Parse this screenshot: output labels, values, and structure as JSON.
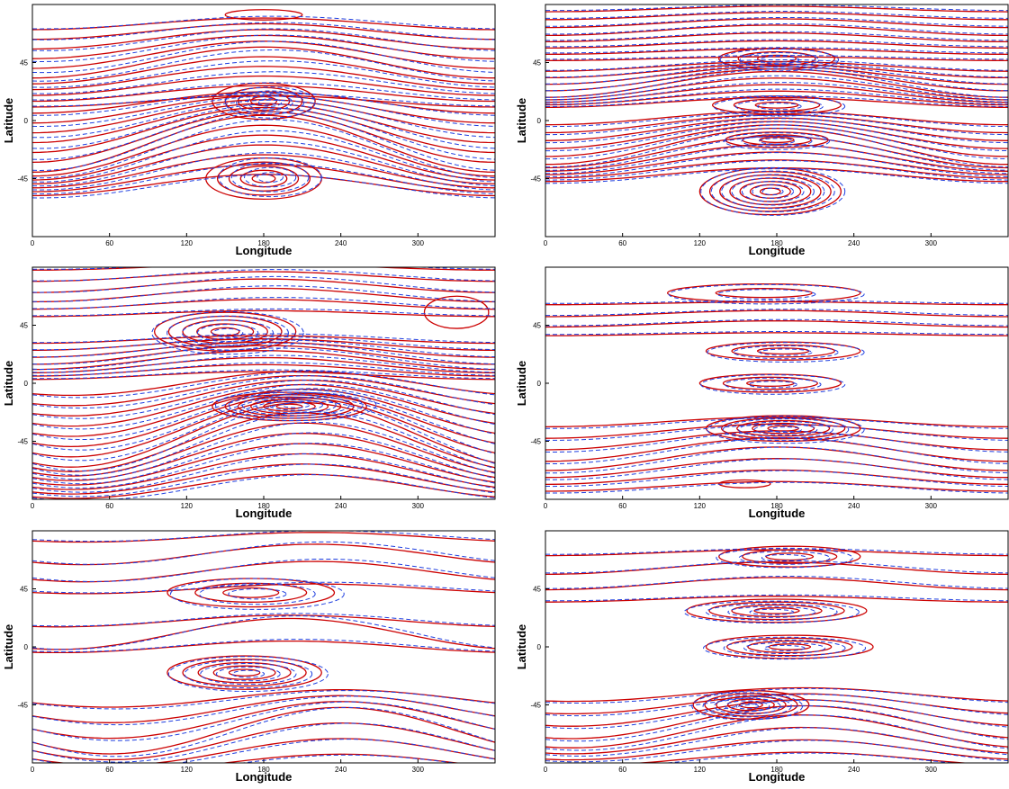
{
  "colors": {
    "solid": "#cc0000",
    "dashed": "#1f3fe0",
    "frame": "#000000",
    "background": "#ffffff"
  },
  "figure": {
    "rows": 3,
    "cols": 2
  },
  "chart_data": [
    {
      "panel": "row1-left",
      "type": "contour",
      "xlabel": "Longitude",
      "ylabel": "Latitude",
      "xlim": [
        0,
        360
      ],
      "ylim": [
        -90,
        90
      ],
      "xticks": [
        "0",
        "60",
        "120",
        "180",
        "240",
        "300"
      ],
      "yticks": [
        "45",
        "0",
        "-45"
      ],
      "series": [
        {
          "style": "solid",
          "bands": [
            {
              "lat": 45,
              "spread": 30,
              "amp": 12,
              "count": 11,
              "phase": 0
            },
            {
              "lat": -18,
              "spread": 32,
              "amp": 22,
              "count": 13,
              "phase": 0
            }
          ],
          "closed": [
            {
              "lon": 180,
              "lat": 15,
              "w": 80,
              "h": 28,
              "count": 4
            },
            {
              "lon": 180,
              "lat": -45,
              "w": 90,
              "h": 32,
              "count": 5
            },
            {
              "lon": 180,
              "lat": 82,
              "w": 60,
              "h": 8,
              "count": 1
            }
          ]
        },
        {
          "style": "dashed",
          "bands": [
            {
              "lat": 46,
              "spread": 30,
              "amp": 13,
              "count": 10,
              "phase": 8
            },
            {
              "lat": -19,
              "spread": 32,
              "amp": 24,
              "count": 12,
              "phase": 6
            }
          ],
          "closed": [
            {
              "lon": 185,
              "lat": 14,
              "w": 70,
              "h": 24,
              "count": 4
            },
            {
              "lon": 185,
              "lat": -44,
              "w": 80,
              "h": 30,
              "count": 4
            }
          ]
        }
      ]
    },
    {
      "panel": "row1-right",
      "type": "contour",
      "xlabel": "Longitude",
      "ylabel": "Latitude",
      "xlim": [
        0,
        360
      ],
      "ylim": [
        -90,
        90
      ],
      "xticks": [
        "0",
        "60",
        "120",
        "180",
        "240",
        "300"
      ],
      "yticks": [
        "45",
        "0",
        "-45"
      ],
      "series": [
        {
          "style": "solid",
          "bands": [
            {
              "lat": 70,
              "spread": 22,
              "amp": 4,
              "count": 9,
              "phase": 0
            },
            {
              "lat": 28,
              "spread": 14,
              "amp": 10,
              "count": 9,
              "phase": 0
            },
            {
              "lat": -20,
              "spread": 22,
              "amp": 14,
              "count": 11,
              "phase": 0
            }
          ],
          "closed": [
            {
              "lon": 180,
              "lat": 48,
              "w": 90,
              "h": 16,
              "count": 3
            },
            {
              "lon": 180,
              "lat": 12,
              "w": 100,
              "h": 14,
              "count": 3
            },
            {
              "lon": 180,
              "lat": -15,
              "w": 80,
              "h": 12,
              "count": 3
            },
            {
              "lon": 175,
              "lat": -55,
              "w": 110,
              "h": 36,
              "count": 7
            }
          ]
        },
        {
          "style": "dashed",
          "bands": [
            {
              "lat": 71,
              "spread": 22,
              "amp": 4,
              "count": 9,
              "phase": 5
            },
            {
              "lat": 29,
              "spread": 14,
              "amp": 11,
              "count": 9,
              "phase": 4
            },
            {
              "lat": -21,
              "spread": 22,
              "amp": 15,
              "count": 11,
              "phase": 3
            }
          ],
          "closed": [
            {
              "lon": 182,
              "lat": 47,
              "w": 92,
              "h": 17,
              "count": 3
            },
            {
              "lon": 182,
              "lat": 11,
              "w": 102,
              "h": 15,
              "count": 3
            },
            {
              "lon": 180,
              "lat": -16,
              "w": 82,
              "h": 13,
              "count": 3
            },
            {
              "lon": 177,
              "lat": -55,
              "w": 112,
              "h": 37,
              "count": 7
            }
          ]
        }
      ]
    },
    {
      "panel": "row2-left",
      "type": "contour",
      "xlabel": "Longitude",
      "ylabel": "Latitude",
      "xlim": [
        0,
        360
      ],
      "ylim": [
        -90,
        90
      ],
      "xticks": [
        "0",
        "60",
        "120",
        "180",
        "240",
        "300"
      ],
      "yticks": [
        "45",
        "0",
        "-45"
      ],
      "series": [
        {
          "style": "solid",
          "bands": [
            {
              "lat": 72,
              "spread": 18,
              "amp": 6,
              "count": 6,
              "phase": 0
            },
            {
              "lat": 20,
              "spread": 14,
              "amp": 8,
              "count": 8,
              "phase": 0
            },
            {
              "lat": -40,
              "spread": 40,
              "amp": 25,
              "count": 15,
              "phase": 30
            }
          ],
          "closed": [
            {
              "lon": 150,
              "lat": 40,
              "w": 110,
              "h": 30,
              "count": 5
            },
            {
              "lon": 200,
              "lat": -18,
              "w": 120,
              "h": 22,
              "count": 6
            },
            {
              "lon": 330,
              "lat": 55,
              "w": 50,
              "h": 25,
              "count": 1
            }
          ]
        },
        {
          "style": "dashed",
          "bands": [
            {
              "lat": 73,
              "spread": 18,
              "amp": 7,
              "count": 6,
              "phase": 10
            },
            {
              "lat": 21,
              "spread": 14,
              "amp": 9,
              "count": 8,
              "phase": 10
            },
            {
              "lat": -41,
              "spread": 40,
              "amp": 27,
              "count": 15,
              "phase": 38
            }
          ],
          "closed": [
            {
              "lon": 152,
              "lat": 39,
              "w": 118,
              "h": 33,
              "count": 5
            },
            {
              "lon": 205,
              "lat": -17,
              "w": 125,
              "h": 24,
              "count": 6
            }
          ]
        }
      ]
    },
    {
      "panel": "row2-right",
      "type": "contour",
      "xlabel": "Longitude",
      "ylabel": "Latitude",
      "xlim": [
        0,
        360
      ],
      "ylim": [
        -90,
        90
      ],
      "xticks": [
        "0",
        "60",
        "120",
        "180",
        "240",
        "300"
      ],
      "yticks": [
        "45",
        "0",
        "-45"
      ],
      "series": [
        {
          "style": "solid",
          "bands": [
            {
              "lat": 50,
              "spread": 12,
              "amp": 3,
              "count": 4,
              "phase": 0
            },
            {
              "lat": -55,
              "spread": 25,
              "amp": 10,
              "count": 8,
              "phase": 0
            }
          ],
          "closed": [
            {
              "lon": 170,
              "lat": 70,
              "w": 150,
              "h": 14,
              "count": 2
            },
            {
              "lon": 185,
              "lat": 25,
              "w": 120,
              "h": 14,
              "count": 3
            },
            {
              "lon": 175,
              "lat": 0,
              "w": 110,
              "h": 14,
              "count": 3
            },
            {
              "lon": 185,
              "lat": -35,
              "w": 120,
              "h": 20,
              "count": 5
            },
            {
              "lon": 155,
              "lat": -78,
              "w": 40,
              "h": 6,
              "count": 1
            }
          ]
        },
        {
          "style": "dashed",
          "bands": [
            {
              "lat": 51,
              "spread": 12,
              "amp": 3,
              "count": 4,
              "phase": 6
            },
            {
              "lat": -56,
              "spread": 25,
              "amp": 11,
              "count": 8,
              "phase": 6
            }
          ],
          "closed": [
            {
              "lon": 172,
              "lat": 69,
              "w": 152,
              "h": 15,
              "count": 2
            },
            {
              "lon": 187,
              "lat": 24,
              "w": 122,
              "h": 15,
              "count": 3
            },
            {
              "lon": 177,
              "lat": -1,
              "w": 112,
              "h": 15,
              "count": 3
            },
            {
              "lon": 187,
              "lat": -36,
              "w": 122,
              "h": 21,
              "count": 5
            }
          ]
        }
      ]
    },
    {
      "panel": "row3-left",
      "type": "contour",
      "xlabel": "Longitude",
      "ylabel": "Latitude",
      "xlim": [
        0,
        360
      ],
      "ylim": [
        -90,
        90
      ],
      "xticks": [
        "0",
        "60",
        "120",
        "180",
        "240",
        "300"
      ],
      "yticks": [
        "45",
        "0",
        "-45"
      ],
      "series": [
        {
          "style": "solid",
          "bands": [
            {
              "lat": 65,
              "spread": 20,
              "amp": 10,
              "count": 4,
              "phase": 40
            },
            {
              "lat": 10,
              "spread": 10,
              "amp": 12,
              "count": 3,
              "phase": 20
            },
            {
              "lat": -65,
              "spread": 25,
              "amp": 18,
              "count": 7,
              "phase": 60
            }
          ],
          "closed": [
            {
              "lon": 170,
              "lat": 42,
              "w": 130,
              "h": 22,
              "count": 3
            },
            {
              "lon": 165,
              "lat": -20,
              "w": 120,
              "h": 26,
              "count": 5
            }
          ]
        },
        {
          "style": "dashed",
          "bands": [
            {
              "lat": 66,
              "spread": 20,
              "amp": 11,
              "count": 4,
              "phase": 48
            },
            {
              "lat": 11,
              "spread": 10,
              "amp": 13,
              "count": 3,
              "phase": 26
            },
            {
              "lat": -66,
              "spread": 25,
              "amp": 19,
              "count": 7,
              "phase": 66
            }
          ],
          "closed": [
            {
              "lon": 175,
              "lat": 41,
              "w": 135,
              "h": 24,
              "count": 3
            },
            {
              "lon": 168,
              "lat": -21,
              "w": 124,
              "h": 27,
              "count": 5
            }
          ]
        }
      ]
    },
    {
      "panel": "row3-right",
      "type": "contour",
      "xlabel": "Longitude",
      "ylabel": "Latitude",
      "xlim": [
        0,
        360
      ],
      "ylim": [
        -90,
        90
      ],
      "xticks": [
        "0",
        "60",
        "120",
        "180",
        "240",
        "300"
      ],
      "yticks": [
        "45",
        "0",
        "-45"
      ],
      "series": [
        {
          "style": "solid",
          "bands": [
            {
              "lat": 55,
              "spread": 18,
              "amp": 6,
              "count": 4,
              "phase": 0
            },
            {
              "lat": -62,
              "spread": 25,
              "amp": 14,
              "count": 8,
              "phase": 20
            }
          ],
          "closed": [
            {
              "lon": 190,
              "lat": 70,
              "w": 110,
              "h": 16,
              "count": 3
            },
            {
              "lon": 180,
              "lat": 28,
              "w": 140,
              "h": 18,
              "count": 4
            },
            {
              "lon": 190,
              "lat": 0,
              "w": 130,
              "h": 18,
              "count": 4
            },
            {
              "lon": 160,
              "lat": -45,
              "w": 90,
              "h": 22,
              "count": 5
            }
          ]
        },
        {
          "style": "dashed",
          "bands": [
            {
              "lat": 56,
              "spread": 18,
              "amp": 6,
              "count": 4,
              "phase": 8
            },
            {
              "lat": -63,
              "spread": 25,
              "amp": 15,
              "count": 8,
              "phase": 26
            }
          ],
          "closed": [
            {
              "lon": 186,
              "lat": 69,
              "w": 106,
              "h": 15,
              "count": 3
            },
            {
              "lon": 176,
              "lat": 27,
              "w": 136,
              "h": 17,
              "count": 4
            },
            {
              "lon": 186,
              "lat": -1,
              "w": 126,
              "h": 17,
              "count": 4
            },
            {
              "lon": 157,
              "lat": -46,
              "w": 86,
              "h": 21,
              "count": 5
            }
          ]
        }
      ]
    }
  ]
}
